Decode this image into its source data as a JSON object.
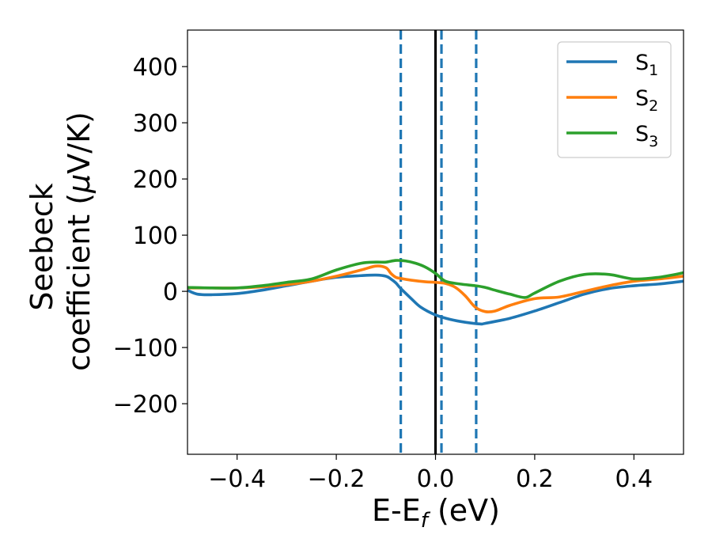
{
  "chart_data": {
    "type": "line",
    "xlabel": "E-E",
    "xlabel_sub": "f",
    "xlabel_unit": " (eV)",
    "ylabel_line1": "Seebeck",
    "ylabel_line2": "coefficient  (",
    "ylabel_mu": "μ",
    "ylabel_unit": "V/K)",
    "xlim": [
      -0.5,
      0.5
    ],
    "ylim": [
      -290,
      465
    ],
    "xticks": [
      -0.4,
      -0.2,
      0.0,
      0.2,
      0.4
    ],
    "xtick_labels": [
      "−0.4",
      "−0.2",
      "0.0",
      "0.2",
      "0.4"
    ],
    "yticks": [
      -200,
      -100,
      0,
      100,
      200,
      300,
      400
    ],
    "ytick_labels": [
      "−200",
      "−100",
      "0",
      "100",
      "200",
      "300",
      "400"
    ],
    "grid": false,
    "legend_position": "top-right",
    "vlines": [
      {
        "x": 0.0,
        "style": "solid",
        "color": "#000000"
      },
      {
        "x": -0.07,
        "style": "dashed",
        "color": "#1f77b4"
      },
      {
        "x": 0.012,
        "style": "dashed",
        "color": "#1f77b4"
      },
      {
        "x": 0.082,
        "style": "dashed",
        "color": "#1f77b4"
      }
    ],
    "series": [
      {
        "name": "S",
        "name_sub": "1",
        "color": "#1f77b4",
        "x": [
          -0.5,
          -0.48,
          -0.45,
          -0.4,
          -0.35,
          -0.3,
          -0.25,
          -0.2,
          -0.15,
          -0.12,
          -0.1,
          -0.09,
          -0.08,
          -0.07,
          -0.05,
          -0.03,
          0.0,
          0.03,
          0.06,
          0.09,
          0.1,
          0.15,
          0.2,
          0.25,
          0.3,
          0.35,
          0.4,
          0.45,
          0.5
        ],
        "y": [
          2,
          -5,
          -6,
          -4,
          2,
          10,
          18,
          25,
          28,
          29,
          27,
          22,
          15,
          5,
          -12,
          -28,
          -42,
          -50,
          -55,
          -58,
          -57,
          -48,
          -35,
          -20,
          -5,
          5,
          10,
          13,
          18
        ]
      },
      {
        "name": "S",
        "name_sub": "2",
        "color": "#ff7f0e",
        "x": [
          -0.5,
          -0.45,
          -0.4,
          -0.35,
          -0.3,
          -0.25,
          -0.2,
          -0.15,
          -0.12,
          -0.1,
          -0.09,
          -0.08,
          -0.07,
          -0.05,
          -0.02,
          0.0,
          0.02,
          0.04,
          0.06,
          0.08,
          0.1,
          0.12,
          0.15,
          0.2,
          0.25,
          0.3,
          0.35,
          0.4,
          0.45,
          0.5
        ],
        "y": [
          6,
          6,
          6,
          8,
          12,
          18,
          27,
          38,
          45,
          42,
          32,
          25,
          23,
          20,
          17,
          16,
          14,
          7,
          -8,
          -28,
          -36,
          -35,
          -25,
          -13,
          -10,
          0,
          10,
          18,
          22,
          27
        ]
      },
      {
        "name": "S",
        "name_sub": "3",
        "color": "#2ca02c",
        "x": [
          -0.5,
          -0.45,
          -0.4,
          -0.35,
          -0.3,
          -0.25,
          -0.2,
          -0.15,
          -0.12,
          -0.1,
          -0.08,
          -0.06,
          -0.04,
          -0.02,
          0.0,
          0.02,
          0.05,
          0.08,
          0.1,
          0.12,
          0.15,
          0.18,
          0.2,
          0.25,
          0.3,
          0.35,
          0.4,
          0.45,
          0.5
        ],
        "y": [
          7,
          6,
          6,
          10,
          16,
          22,
          38,
          50,
          52,
          52,
          55,
          54,
          50,
          43,
          32,
          18,
          13,
          10,
          7,
          2,
          -5,
          -11,
          -3,
          18,
          30,
          30,
          22,
          25,
          33
        ]
      }
    ]
  }
}
